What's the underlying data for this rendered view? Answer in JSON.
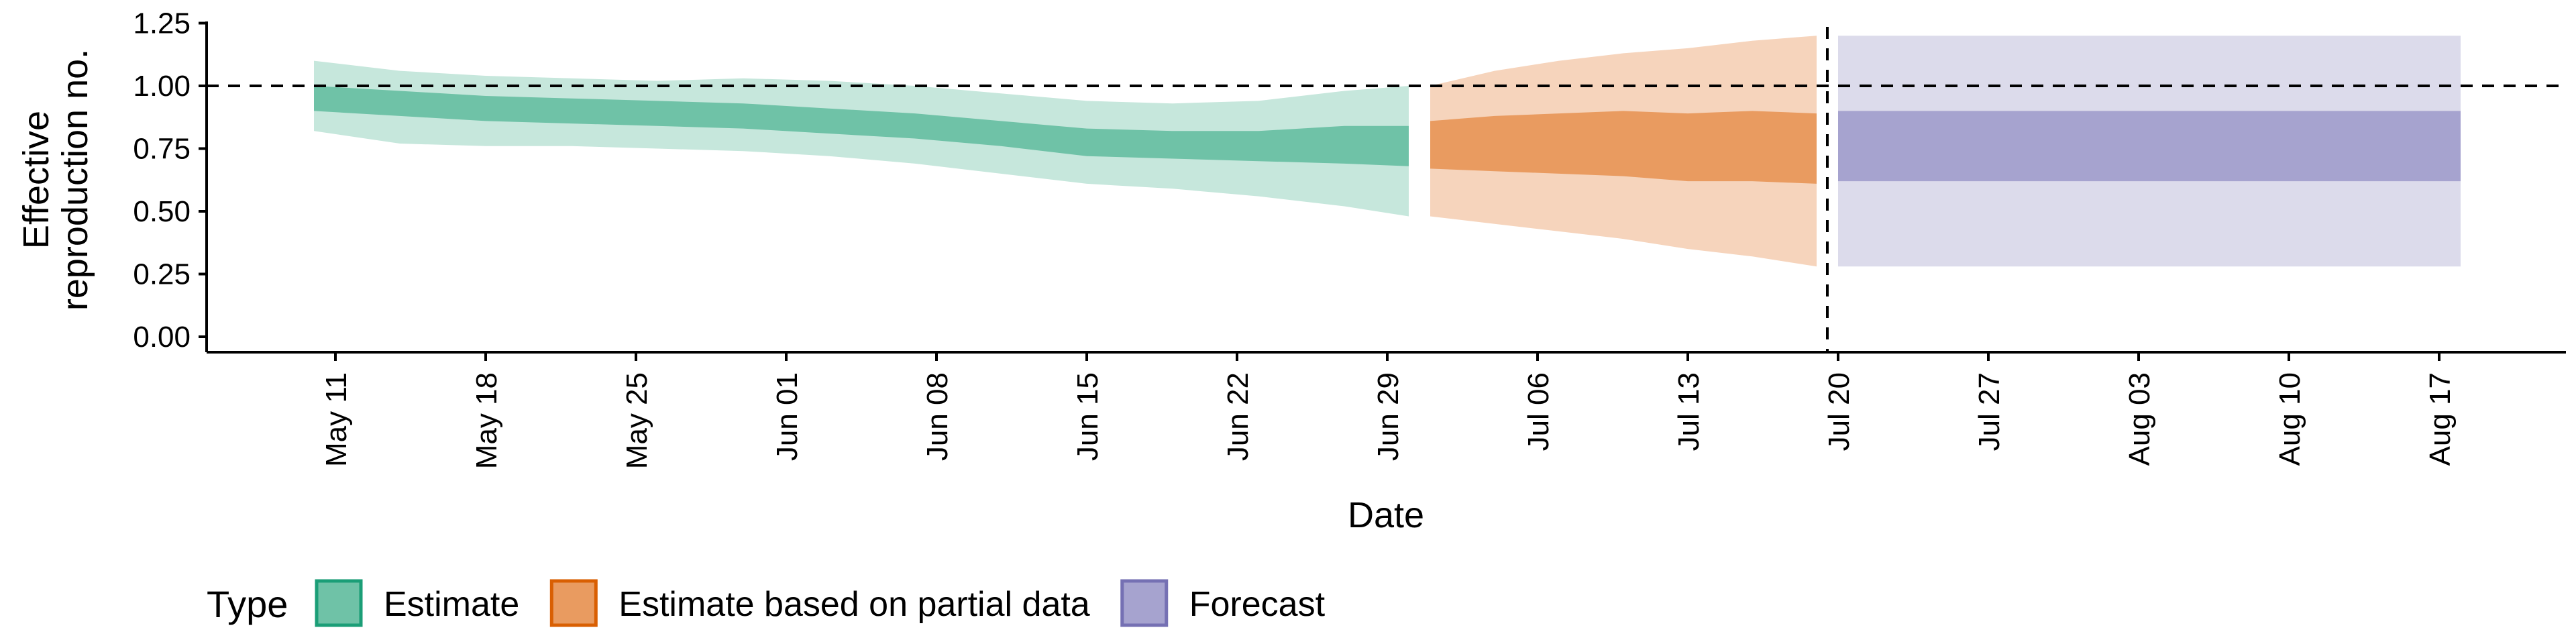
{
  "chart_data": {
    "type": "area",
    "xlabel": "Date",
    "ylabel_lines": [
      "Effective",
      "reproduction no."
    ],
    "ylim": [
      0,
      1.25
    ],
    "y_ticks": [
      "0.00",
      "0.25",
      "0.50",
      "0.75",
      "1.00",
      "1.25"
    ],
    "x_ticks": [
      {
        "date": "2020-05-11",
        "label": "May 11"
      },
      {
        "date": "2020-05-18",
        "label": "May 18"
      },
      {
        "date": "2020-05-25",
        "label": "May 25"
      },
      {
        "date": "2020-06-01",
        "label": "Jun 01"
      },
      {
        "date": "2020-06-08",
        "label": "Jun 08"
      },
      {
        "date": "2020-06-15",
        "label": "Jun 15"
      },
      {
        "date": "2020-06-22",
        "label": "Jun 22"
      },
      {
        "date": "2020-06-29",
        "label": "Jun 29"
      },
      {
        "date": "2020-07-06",
        "label": "Jul 06"
      },
      {
        "date": "2020-07-13",
        "label": "Jul 13"
      },
      {
        "date": "2020-07-20",
        "label": "Jul 20"
      },
      {
        "date": "2020-07-27",
        "label": "Jul 27"
      },
      {
        "date": "2020-08-03",
        "label": "Aug 03"
      },
      {
        "date": "2020-08-10",
        "label": "Aug 10"
      },
      {
        "date": "2020-08-17",
        "label": "Aug 17"
      }
    ],
    "reference_line_y": 1.0,
    "forecast_start_date": "2020-07-19",
    "legend": {
      "title": "Type",
      "position": "bottom",
      "items": [
        "Estimate",
        "Estimate based on partial data",
        "Forecast"
      ]
    },
    "series": [
      {
        "name": "Estimate",
        "fill_inner": "#6fc2a7",
        "fill_outer": "#c6e7dc",
        "border": "#1b9e77",
        "points": [
          {
            "date": "2020-05-10",
            "lower90": 0.82,
            "lower50": 0.9,
            "upper50": 1.0,
            "upper90": 1.1
          },
          {
            "date": "2020-05-14",
            "lower90": 0.77,
            "lower50": 0.88,
            "upper50": 0.98,
            "upper90": 1.06
          },
          {
            "date": "2020-05-18",
            "lower90": 0.76,
            "lower50": 0.86,
            "upper50": 0.96,
            "upper90": 1.04
          },
          {
            "date": "2020-05-22",
            "lower90": 0.76,
            "lower50": 0.85,
            "upper50": 0.95,
            "upper90": 1.03
          },
          {
            "date": "2020-05-26",
            "lower90": 0.75,
            "lower50": 0.84,
            "upper50": 0.94,
            "upper90": 1.02
          },
          {
            "date": "2020-05-30",
            "lower90": 0.74,
            "lower50": 0.83,
            "upper50": 0.93,
            "upper90": 1.03
          },
          {
            "date": "2020-06-03",
            "lower90": 0.72,
            "lower50": 0.81,
            "upper50": 0.91,
            "upper90": 1.02
          },
          {
            "date": "2020-06-07",
            "lower90": 0.69,
            "lower50": 0.79,
            "upper50": 0.89,
            "upper90": 1.0
          },
          {
            "date": "2020-06-11",
            "lower90": 0.65,
            "lower50": 0.76,
            "upper50": 0.86,
            "upper90": 0.97
          },
          {
            "date": "2020-06-15",
            "lower90": 0.61,
            "lower50": 0.72,
            "upper50": 0.83,
            "upper90": 0.94
          },
          {
            "date": "2020-06-19",
            "lower90": 0.59,
            "lower50": 0.71,
            "upper50": 0.82,
            "upper90": 0.93
          },
          {
            "date": "2020-06-23",
            "lower90": 0.56,
            "lower50": 0.7,
            "upper50": 0.82,
            "upper90": 0.94
          },
          {
            "date": "2020-06-27",
            "lower90": 0.52,
            "lower50": 0.69,
            "upper50": 0.84,
            "upper90": 0.98
          },
          {
            "date": "2020-06-30",
            "lower90": 0.48,
            "lower50": 0.68,
            "upper50": 0.84,
            "upper90": 1.0
          }
        ]
      },
      {
        "name": "Estimate based on partial data",
        "fill_inner": "#e99b60",
        "fill_outer": "#f6d4bc",
        "border": "#d95f02",
        "points": [
          {
            "date": "2020-07-01",
            "lower90": 0.48,
            "lower50": 0.67,
            "upper50": 0.86,
            "upper90": 1.0
          },
          {
            "date": "2020-07-04",
            "lower90": 0.45,
            "lower50": 0.66,
            "upper50": 0.88,
            "upper90": 1.06
          },
          {
            "date": "2020-07-07",
            "lower90": 0.42,
            "lower50": 0.65,
            "upper50": 0.89,
            "upper90": 1.1
          },
          {
            "date": "2020-07-10",
            "lower90": 0.39,
            "lower50": 0.64,
            "upper50": 0.9,
            "upper90": 1.13
          },
          {
            "date": "2020-07-13",
            "lower90": 0.35,
            "lower50": 0.62,
            "upper50": 0.89,
            "upper90": 1.15
          },
          {
            "date": "2020-07-16",
            "lower90": 0.32,
            "lower50": 0.62,
            "upper50": 0.9,
            "upper90": 1.18
          },
          {
            "date": "2020-07-19",
            "lower90": 0.28,
            "lower50": 0.61,
            "upper50": 0.89,
            "upper90": 1.2
          }
        ]
      },
      {
        "name": "Forecast",
        "fill_inner": "#a6a3cf",
        "fill_outer": "#dcdbeb",
        "border": "#7570b3",
        "points": [
          {
            "date": "2020-07-20",
            "lower90": 0.28,
            "lower50": 0.62,
            "upper50": 0.9,
            "upper90": 1.2
          },
          {
            "date": "2020-08-18",
            "lower90": 0.28,
            "lower50": 0.62,
            "upper50": 0.9,
            "upper90": 1.2
          }
        ]
      }
    ]
  }
}
